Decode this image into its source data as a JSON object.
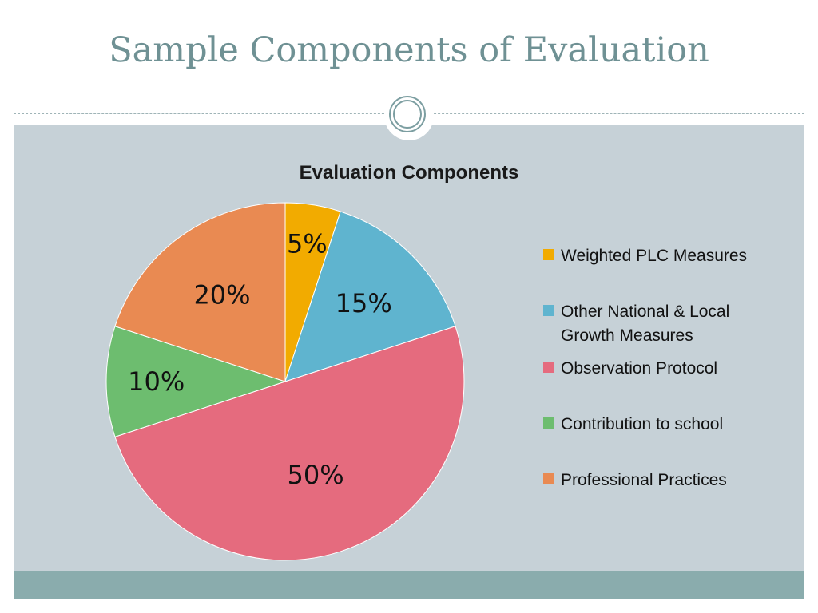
{
  "slide": {
    "title": "Sample Components of Evaluation"
  },
  "chart_data": {
    "type": "pie",
    "title": "Evaluation Components",
    "legend_position": "right",
    "slices": [
      {
        "name": "Weighted PLC Measures",
        "value": 5,
        "label": "5%",
        "color": "#f2ab00"
      },
      {
        "name": "Other National & Local Growth Measures",
        "value": 15,
        "label": "15%",
        "color": "#5fb4cf"
      },
      {
        "name": "Observation Protocol",
        "value": 50,
        "label": "50%",
        "color": "#e56b7e"
      },
      {
        "name": "Contribution to school",
        "value": 10,
        "label": "10%",
        "color": "#6dbd6f"
      },
      {
        "name": "Professional Practices",
        "value": 20,
        "label": "20%",
        "color": "#e98a52"
      }
    ]
  }
}
